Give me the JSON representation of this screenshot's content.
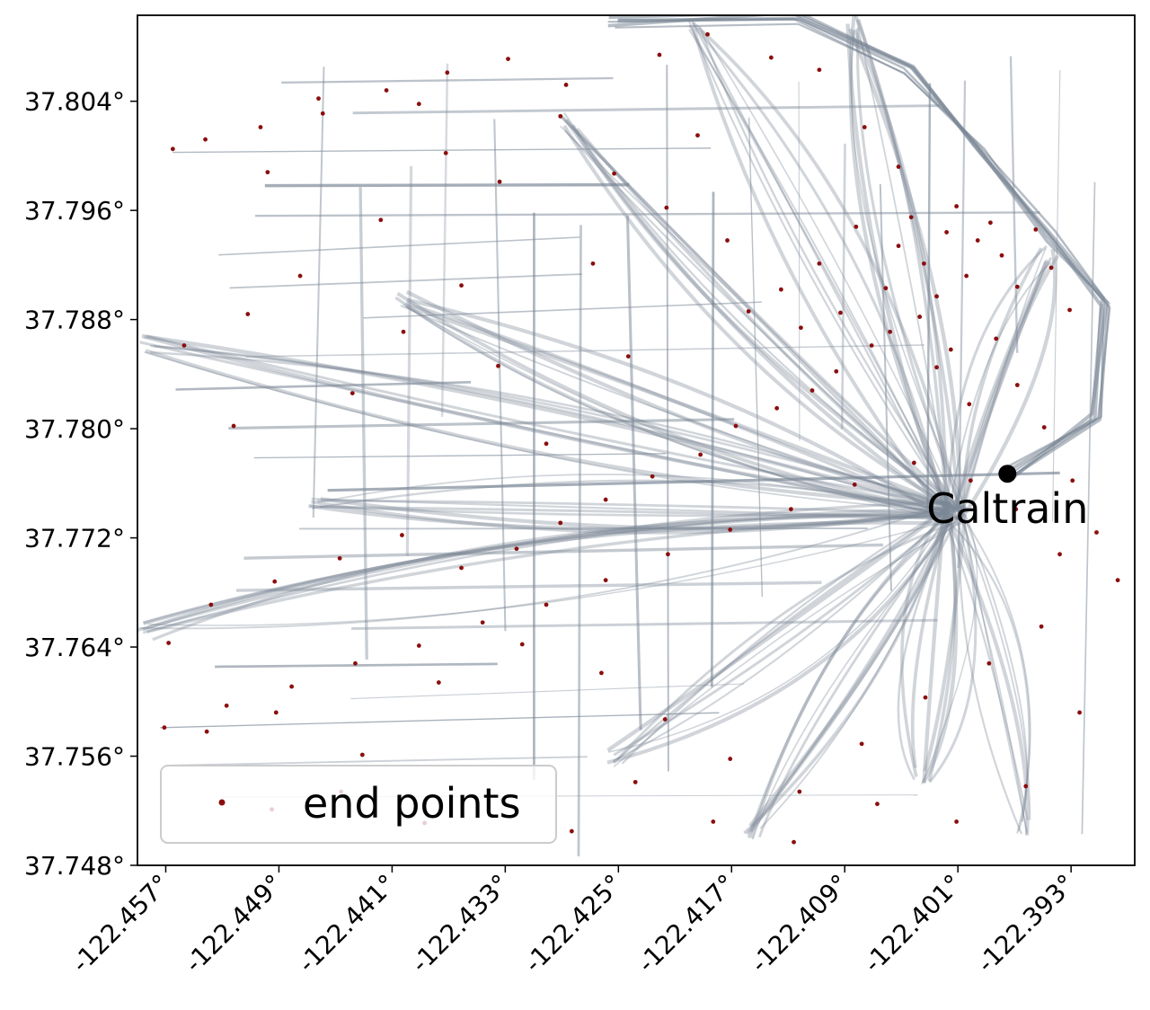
{
  "chart_data": {
    "type": "scatter",
    "title": "",
    "xlabel": "",
    "ylabel": "",
    "xlim": [
      -122.459,
      -122.3885
    ],
    "ylim": [
      37.748,
      37.8103
    ],
    "xticks": [
      -122.457,
      -122.449,
      -122.441,
      -122.433,
      -122.425,
      -122.417,
      -122.409,
      -122.401,
      -122.393
    ],
    "yticks": [
      37.804,
      37.796,
      37.788,
      37.78,
      37.772,
      37.764,
      37.756,
      37.748
    ],
    "xtick_labels": [
      "-122.457°",
      "-122.449°",
      "-122.441°",
      "-122.433°",
      "-122.425°",
      "-122.417°",
      "-122.409°",
      "-122.401°",
      "-122.393°"
    ],
    "ytick_labels": [
      "37.804°",
      "37.796°",
      "37.788°",
      "37.780°",
      "37.772°",
      "37.764°",
      "37.756°",
      "37.748°"
    ],
    "grid": false,
    "legend": {
      "position": "lower-left",
      "entries": [
        "end points"
      ]
    },
    "series": [
      {
        "name": "end points",
        "kind": "scatter",
        "color": "#8b0e0e",
        "points": [
          [
            -122.4565,
            37.8005
          ],
          [
            -122.4542,
            37.8012
          ],
          [
            -122.4498,
            37.7988
          ],
          [
            -122.4462,
            37.8042
          ],
          [
            -122.4391,
            37.8038
          ],
          [
            -122.4372,
            37.8002
          ],
          [
            -122.4334,
            37.7981
          ],
          [
            -122.4291,
            37.8029
          ],
          [
            -122.4253,
            37.7987
          ],
          [
            -122.4418,
            37.7953
          ],
          [
            -122.4475,
            37.7912
          ],
          [
            -122.4512,
            37.7884
          ],
          [
            -122.4557,
            37.7861
          ],
          [
            -122.4522,
            37.7802
          ],
          [
            -122.4438,
            37.7826
          ],
          [
            -122.4402,
            37.7871
          ],
          [
            -122.4361,
            37.7905
          ],
          [
            -122.4335,
            37.7846
          ],
          [
            -122.4301,
            37.7789
          ],
          [
            -122.4268,
            37.7921
          ],
          [
            -122.4243,
            37.7853
          ],
          [
            -122.4216,
            37.7962
          ],
          [
            -122.4194,
            37.8015
          ],
          [
            -122.4173,
            37.7938
          ],
          [
            -122.4158,
            37.7886
          ],
          [
            -122.4135,
            37.7902
          ],
          [
            -122.4121,
            37.7874
          ],
          [
            -122.4108,
            37.7921
          ],
          [
            -122.4093,
            37.7885
          ],
          [
            -122.4082,
            37.7948
          ],
          [
            -122.4071,
            37.7861
          ],
          [
            -122.4061,
            37.7903
          ],
          [
            -122.4052,
            37.7934
          ],
          [
            -122.4043,
            37.7955
          ],
          [
            -122.4034,
            37.7921
          ],
          [
            -122.4025,
            37.7897
          ],
          [
            -122.4018,
            37.7944
          ],
          [
            -122.4011,
            37.7963
          ],
          [
            -122.4004,
            37.7912
          ],
          [
            -122.3996,
            37.7938
          ],
          [
            -122.3987,
            37.7951
          ],
          [
            -122.3979,
            37.7927
          ],
          [
            -122.3968,
            37.7904
          ],
          [
            -122.3955,
            37.7946
          ],
          [
            -122.3944,
            37.7918
          ],
          [
            -122.3931,
            37.7887
          ],
          [
            -122.4096,
            37.7842
          ],
          [
            -122.4113,
            37.7828
          ],
          [
            -122.4138,
            37.7815
          ],
          [
            -122.4167,
            37.7802
          ],
          [
            -122.4192,
            37.7781
          ],
          [
            -122.4226,
            37.7765
          ],
          [
            -122.4259,
            37.7748
          ],
          [
            -122.4291,
            37.7731
          ],
          [
            -122.4322,
            37.7712
          ],
          [
            -122.4361,
            37.7698
          ],
          [
            -122.4403,
            37.7722
          ],
          [
            -122.4447,
            37.7705
          ],
          [
            -122.4493,
            37.7688
          ],
          [
            -122.4538,
            37.7671
          ],
          [
            -122.4568,
            37.7643
          ],
          [
            -122.4541,
            37.7578
          ],
          [
            -122.4492,
            37.7592
          ],
          [
            -122.4431,
            37.7561
          ],
          [
            -122.4377,
            37.7614
          ],
          [
            -122.4318,
            37.7642
          ],
          [
            -122.4262,
            37.7621
          ],
          [
            -122.4217,
            37.7587
          ],
          [
            -122.4171,
            37.7558
          ],
          [
            -122.4122,
            37.7534
          ],
          [
            -122.4078,
            37.7569
          ],
          [
            -122.4033,
            37.7603
          ],
          [
            -122.3988,
            37.7628
          ],
          [
            -122.3951,
            37.7655
          ],
          [
            -122.3924,
            37.7592
          ],
          [
            -122.3962,
            37.7538
          ],
          [
            -122.4011,
            37.7512
          ],
          [
            -122.4067,
            37.7525
          ],
          [
            -122.4126,
            37.7497
          ],
          [
            -122.4183,
            37.7512
          ],
          [
            -122.4238,
            37.7541
          ],
          [
            -122.4283,
            37.7505
          ],
          [
            -122.4332,
            37.7528
          ],
          [
            -122.4387,
            37.7511
          ],
          [
            -122.4446,
            37.7534
          ],
          [
            -122.4495,
            37.7521
          ],
          [
            -122.4052,
            37.7992
          ],
          [
            -122.4076,
            37.8021
          ],
          [
            -122.4108,
            37.8063
          ],
          [
            -122.4142,
            37.8072
          ],
          [
            -122.4187,
            37.8089
          ],
          [
            -122.4221,
            37.8074
          ],
          [
            -122.4025,
            37.7845
          ],
          [
            -122.4002,
            37.7818
          ],
          [
            -122.3983,
            37.7866
          ],
          [
            -122.3968,
            37.7832
          ],
          [
            -122.4058,
            37.7871
          ],
          [
            -122.4037,
            37.7882
          ],
          [
            -122.4015,
            37.7858
          ],
          [
            -122.3949,
            37.7801
          ],
          [
            -122.3929,
            37.7762
          ],
          [
            -122.3912,
            37.7724
          ],
          [
            -122.3897,
            37.7689
          ],
          [
            -122.3938,
            37.7708
          ],
          [
            -122.3969,
            37.7741
          ],
          [
            -122.4001,
            37.7762
          ],
          [
            -122.4041,
            37.7775
          ],
          [
            -122.4083,
            37.7759
          ],
          [
            -122.4128,
            37.7741
          ],
          [
            -122.4171,
            37.7726
          ],
          [
            -122.4215,
            37.7708
          ],
          [
            -122.4259,
            37.7689
          ],
          [
            -122.4301,
            37.7671
          ],
          [
            -122.4346,
            37.7658
          ],
          [
            -122.4391,
            37.7641
          ],
          [
            -122.4436,
            37.7628
          ],
          [
            -122.4481,
            37.7611
          ],
          [
            -122.4527,
            37.7597
          ],
          [
            -122.4571,
            37.7581
          ],
          [
            -122.4287,
            37.8052
          ],
          [
            -122.4328,
            37.8071
          ],
          [
            -122.4371,
            37.8061
          ],
          [
            -122.4414,
            37.8048
          ],
          [
            -122.4459,
            37.8031
          ],
          [
            -122.4503,
            37.8021
          ]
        ]
      },
      {
        "name": "Caltrain",
        "kind": "marker",
        "color": "#000000",
        "points": [
          [
            -122.3975,
            37.7767
          ]
        ]
      }
    ],
    "annotations": [
      {
        "text": "Caltrain",
        "x": -122.3975,
        "y": 37.7767
      }
    ],
    "trajectory_color": "#7a8796"
  }
}
